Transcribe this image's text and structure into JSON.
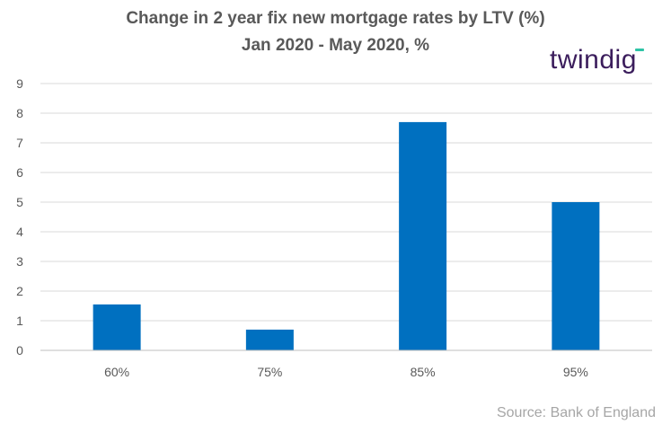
{
  "chart_data": {
    "type": "bar",
    "title": "Change in 2 year fix new mortgage rates by LTV (%)",
    "subtitle": "Jan 2020 - May 2020, %",
    "categories": [
      "60%",
      "75%",
      "85%",
      "95%"
    ],
    "values": [
      1.55,
      0.7,
      7.7,
      5.0
    ],
    "xlabel": "",
    "ylabel": "",
    "ylim": [
      0,
      9
    ],
    "yticks": [
      "0",
      "1",
      "2",
      "3",
      "4",
      "5",
      "6",
      "7",
      "8",
      "9"
    ],
    "grid": true,
    "legend": "none",
    "bar_color": "#0070C0"
  },
  "branding": {
    "logo_text": "twindig",
    "accent_color": "#2EC4A6"
  },
  "source_text": "Source: Bank of England"
}
